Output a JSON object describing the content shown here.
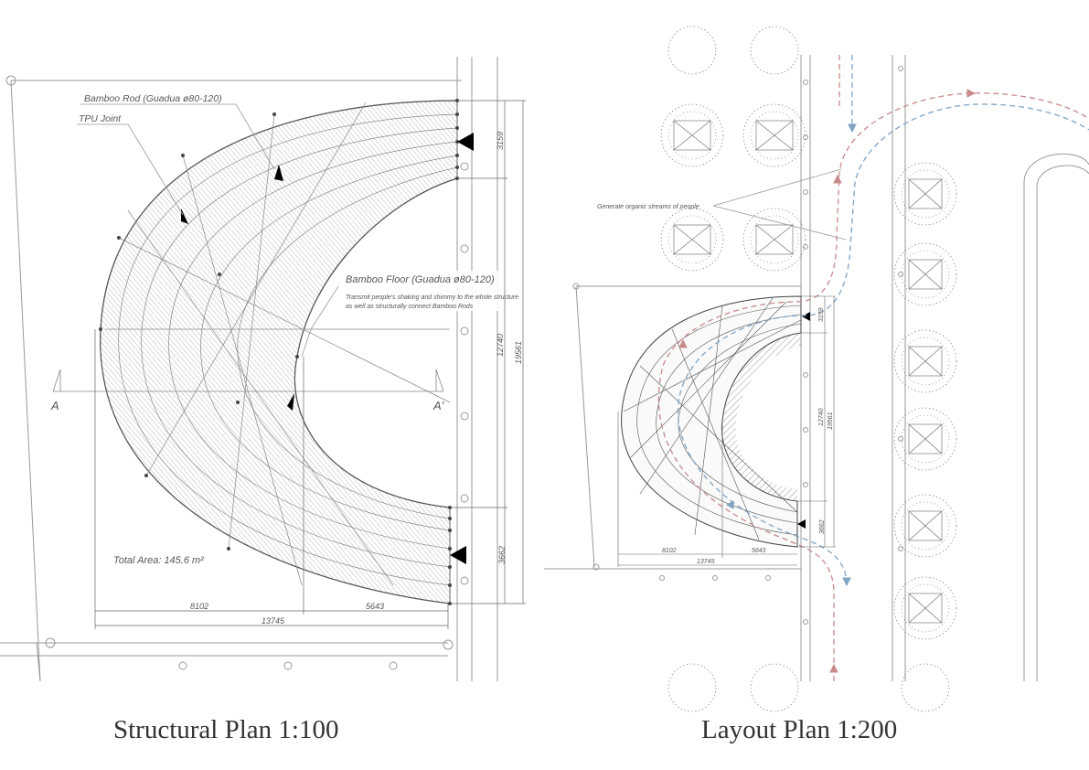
{
  "captions": {
    "structural": "Structural Plan 1:100",
    "layout": "Layout Plan 1:200"
  },
  "structural_plan": {
    "labels": {
      "bamboo_rod": "Bamboo Rod (Guadua ø80-120)",
      "tpu_joint": "TPU Joint",
      "bamboo_floor": "Bamboo Floor (Guadua ø80-120)",
      "floor_note_1": "Transmit people's shaking and shimmy to the whole structure",
      "floor_note_2": "as well as structurally connect Bamboo Rods",
      "total_area": "Total Area: 145.6 m²",
      "section_a": "A",
      "section_a_prime": "A'"
    },
    "dimensions": {
      "top_opening": "3159",
      "inner_span": "12740",
      "outer_span": "19561",
      "bottom_opening": "3662",
      "left_width": "8102",
      "right_width": "5643",
      "total_width": "13745"
    }
  },
  "layout_plan": {
    "labels": {
      "streams_note": "Generate organic streams of people"
    },
    "dimensions": {
      "top_opening": "3159",
      "inner_span": "12740",
      "outer_span": "19561",
      "bottom_opening": "3662",
      "left_width": "8102",
      "right_width": "5643",
      "total_width": "13745"
    },
    "stream_colors": {
      "red": "#c98a8a",
      "blue": "#7fa3c3"
    }
  }
}
